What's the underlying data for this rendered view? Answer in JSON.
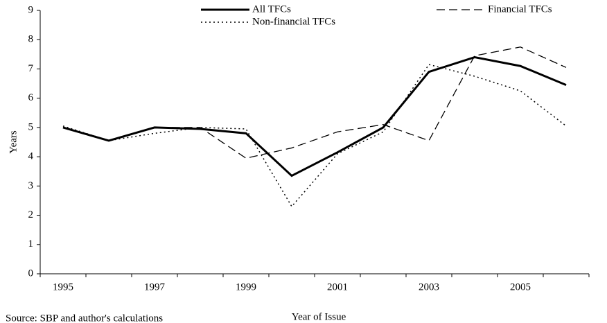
{
  "chart_data": {
    "type": "line",
    "categories": [
      "1995",
      null,
      "1997",
      null,
      "1999",
      null,
      "2001",
      null,
      "2003",
      null,
      "2005",
      null
    ],
    "series": [
      {
        "name": "All TFCs",
        "color": "#000000",
        "values": [
          5.0,
          4.55,
          5.0,
          4.95,
          4.8,
          3.35,
          4.15,
          5.0,
          6.9,
          7.4,
          7.1,
          6.45
        ]
      },
      {
        "name": "Financial TFCs",
        "color": "#000000",
        "values": [
          5.0,
          4.55,
          5.0,
          5.0,
          3.95,
          4.3,
          4.85,
          5.1,
          4.55,
          7.45,
          7.75,
          7.05
        ]
      },
      {
        "name": "Non-financial TFCs",
        "color": "#000000",
        "values": [
          5.05,
          4.55,
          4.8,
          5.0,
          4.95,
          2.3,
          4.1,
          4.85,
          7.15,
          6.75,
          6.25,
          5.05
        ]
      }
    ],
    "ylim": [
      0,
      9
    ],
    "yticks": [
      0,
      1,
      2,
      3,
      4,
      5,
      6,
      7,
      8,
      9
    ],
    "y_label": "Years",
    "x_label": "Year of Issue",
    "source": "Source: SBP and author's calculations"
  }
}
